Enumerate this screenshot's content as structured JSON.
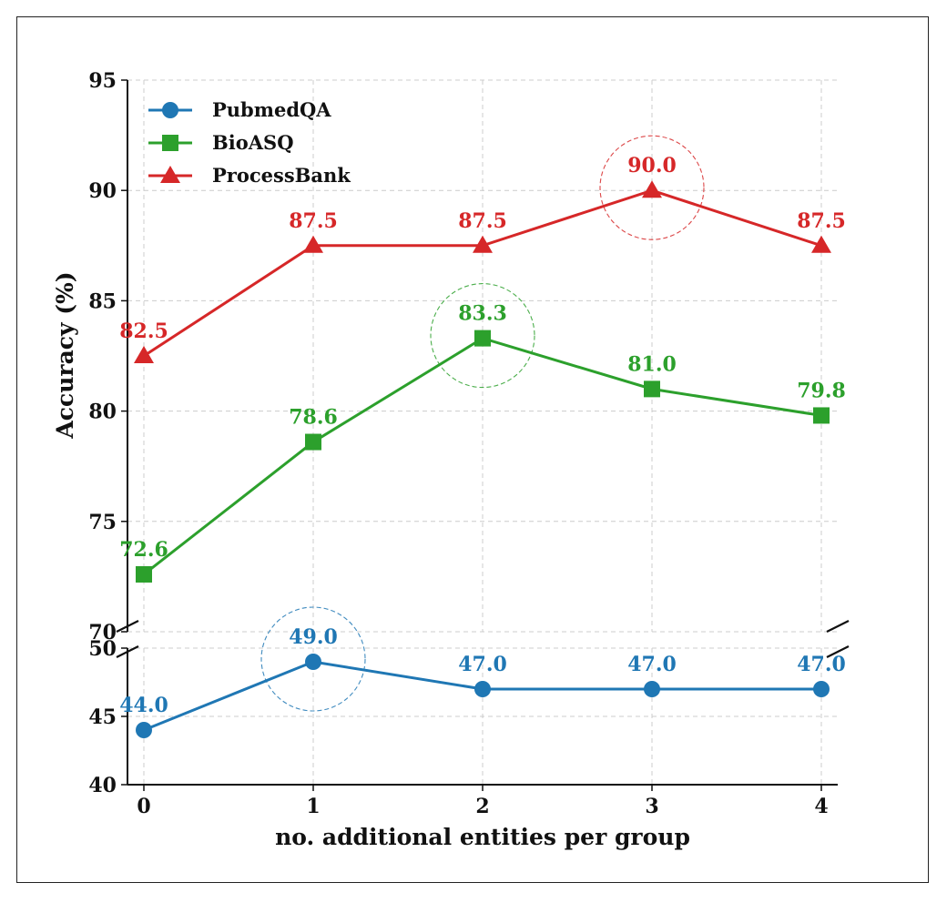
{
  "chart_data": {
    "type": "line",
    "xlabel": "no. additional entities per group",
    "ylabel": "Accuracy (%)",
    "x": [
      0,
      1,
      2,
      3,
      4
    ],
    "x_tick_labels": [
      "0",
      "1",
      "2",
      "3",
      "4"
    ],
    "y_axis_break": true,
    "upper_ylim": [
      70,
      95
    ],
    "upper_yticks": [
      70,
      75,
      80,
      85,
      90,
      95
    ],
    "lower_ylim": [
      40,
      50
    ],
    "lower_yticks": [
      40,
      45,
      50
    ],
    "grid": true,
    "legend_position": "top-left",
    "series": [
      {
        "name": "PubmedQA",
        "color": "#1f77b4",
        "marker": "circle",
        "panel": "lower",
        "values": [
          44.0,
          49.0,
          47.0,
          47.0,
          47.0
        ],
        "labels": [
          "44.0",
          "49.0",
          "47.0",
          "47.0",
          "47.0"
        ],
        "highlight_index": 1
      },
      {
        "name": "BioASQ",
        "color": "#2ca02c",
        "marker": "square",
        "panel": "upper",
        "values": [
          72.6,
          78.6,
          83.3,
          81.0,
          79.8
        ],
        "labels": [
          "72.6",
          "78.6",
          "83.3",
          "81.0",
          "79.8"
        ],
        "highlight_index": 2
      },
      {
        "name": "ProcessBank",
        "color": "#d62728",
        "marker": "triangle",
        "panel": "upper",
        "values": [
          82.5,
          87.5,
          87.5,
          90.0,
          87.5
        ],
        "labels": [
          "82.5",
          "87.5",
          "87.5",
          "90.0",
          "87.5"
        ],
        "highlight_index": 3
      }
    ]
  }
}
